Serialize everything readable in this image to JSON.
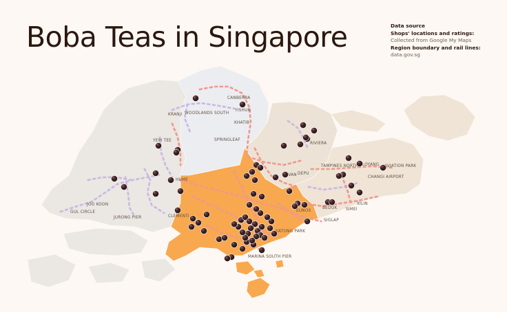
{
  "title": "Boba Teas in Singapore",
  "source": {
    "heading": "Data source",
    "shops_heading": "Shops' locations and ratings:",
    "shops_value": "Collected from Google My Maps",
    "region_heading": "Region boundary and rail lines:",
    "region_value": "data.gov.sg"
  },
  "colors": {
    "background": "#fdf8f3",
    "land_west": "#ebe7e3",
    "land_north": "#ecedf0",
    "land_northeast": "#ede2d6",
    "land_east": "#efe4d6",
    "central_region": "#f8a84e",
    "rail_purple": "#c9b8e2",
    "rail_pink": "#f0988c",
    "shop_marker": "#3a1f22"
  },
  "places": [
    {
      "id": "canberra",
      "name": "CANBERRA"
    },
    {
      "id": "yishun",
      "name": "YISHUN"
    },
    {
      "id": "kranji",
      "name": "KRANJI"
    },
    {
      "id": "woodlands-south",
      "name": "WOODLANDS SOUTH"
    },
    {
      "id": "khatib",
      "name": "KHATIB"
    },
    {
      "id": "riviera",
      "name": "RIVIERA"
    },
    {
      "id": "yew-tee",
      "name": "YEW TEE"
    },
    {
      "id": "springleaf",
      "name": "SPRINGLEAF"
    },
    {
      "id": "tampines-north",
      "name": "TAMPINES NORTH"
    },
    {
      "id": "loyang",
      "name": "LOYANG"
    },
    {
      "id": "aviation-park",
      "name": "AVIATION PARK"
    },
    {
      "id": "hume",
      "name": "HUME"
    },
    {
      "id": "kovan",
      "name": "KOVAN"
    },
    {
      "id": "depu",
      "name": "DEPU"
    },
    {
      "id": "changi-airport",
      "name": "CHANGI AIRPORT"
    },
    {
      "id": "joo-koon",
      "name": "JOO KOON"
    },
    {
      "id": "gul-circle",
      "name": "GUL CIRCLE"
    },
    {
      "id": "jurong-pier",
      "name": "JURONG PIER"
    },
    {
      "id": "clementi",
      "name": "CLEMENTI"
    },
    {
      "id": "bedok",
      "name": "BEDOK"
    },
    {
      "id": "simei",
      "name": "SIMEI"
    },
    {
      "id": "xilin",
      "name": "XILIN"
    },
    {
      "id": "eunos",
      "name": "EUNOS"
    },
    {
      "id": "siglap",
      "name": "SIGLAP"
    },
    {
      "id": "katong-park",
      "name": "KATONG PARK"
    },
    {
      "id": "marina-south-pier",
      "name": "MARINA SOUTH PIER"
    }
  ]
}
